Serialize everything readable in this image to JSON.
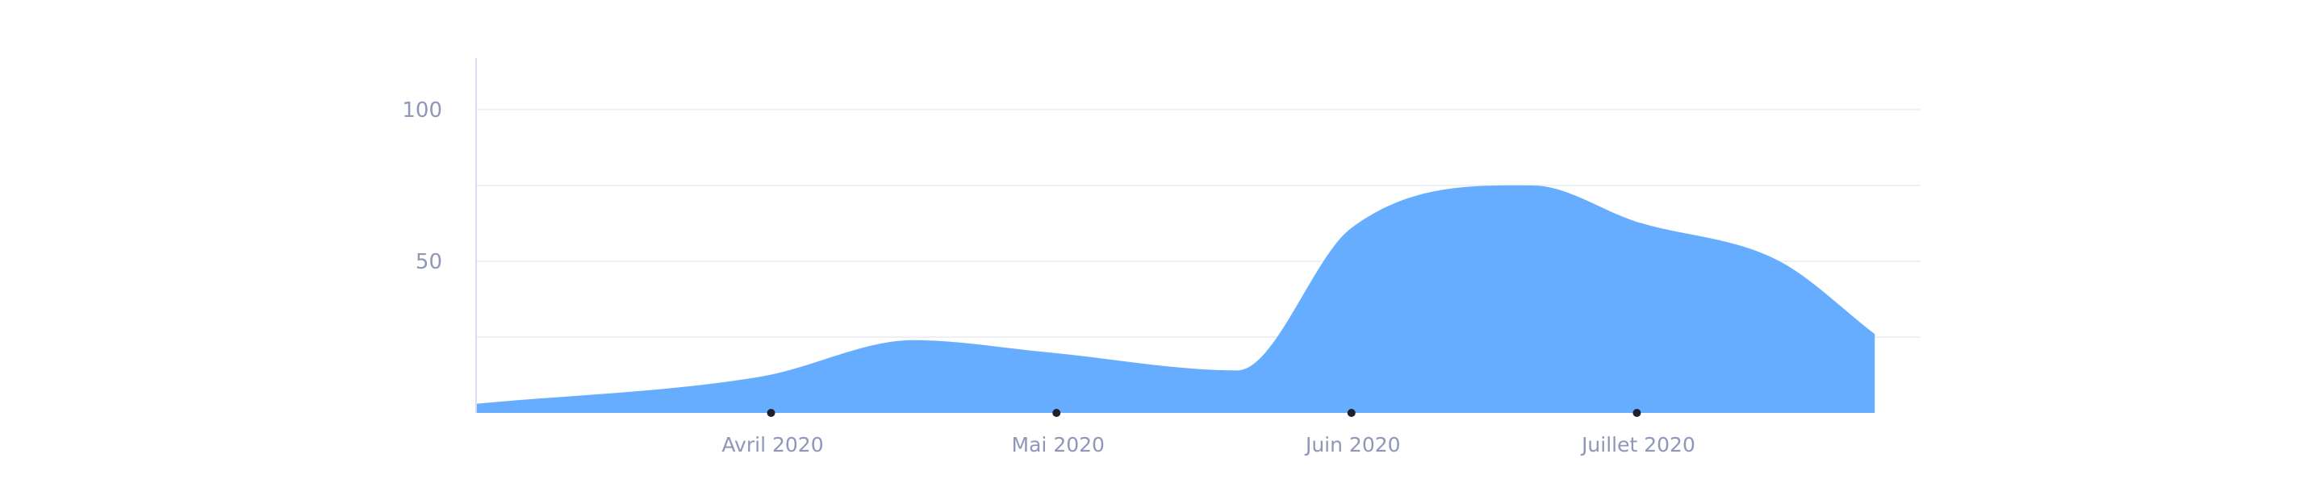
{
  "chart_data": {
    "type": "area",
    "x": [
      "2020-03-01",
      "2020-03-31",
      "2020-04-16",
      "2020-04-30",
      "2020-05-20",
      "2020-06-01",
      "2020-06-20",
      "2020-07-01",
      "2020-07-16",
      "2020-07-26"
    ],
    "series": [
      {
        "values": [
          3,
          12,
          24,
          20,
          14,
          61,
          75,
          63,
          50,
          26
        ]
      }
    ],
    "x_tick_labels": [
      {
        "date": "2020-04-01",
        "label": "Avril 2020"
      },
      {
        "date": "2020-05-01",
        "label": "Mai 2020"
      },
      {
        "date": "2020-06-01",
        "label": "Juin 2020"
      },
      {
        "date": "2020-07-01",
        "label": "Juillet 2020"
      }
    ],
    "y_ticks": [
      {
        "value": 50,
        "label": "50"
      },
      {
        "value": 100,
        "label": "100"
      }
    ],
    "ylim": [
      0,
      117
    ],
    "grid": true,
    "colors": {
      "area": "#66adff",
      "axis": "#d9dcf5",
      "grid": "#eef0f6",
      "tick_label": "#8f96b8",
      "marker": "#1f1f2e"
    }
  }
}
